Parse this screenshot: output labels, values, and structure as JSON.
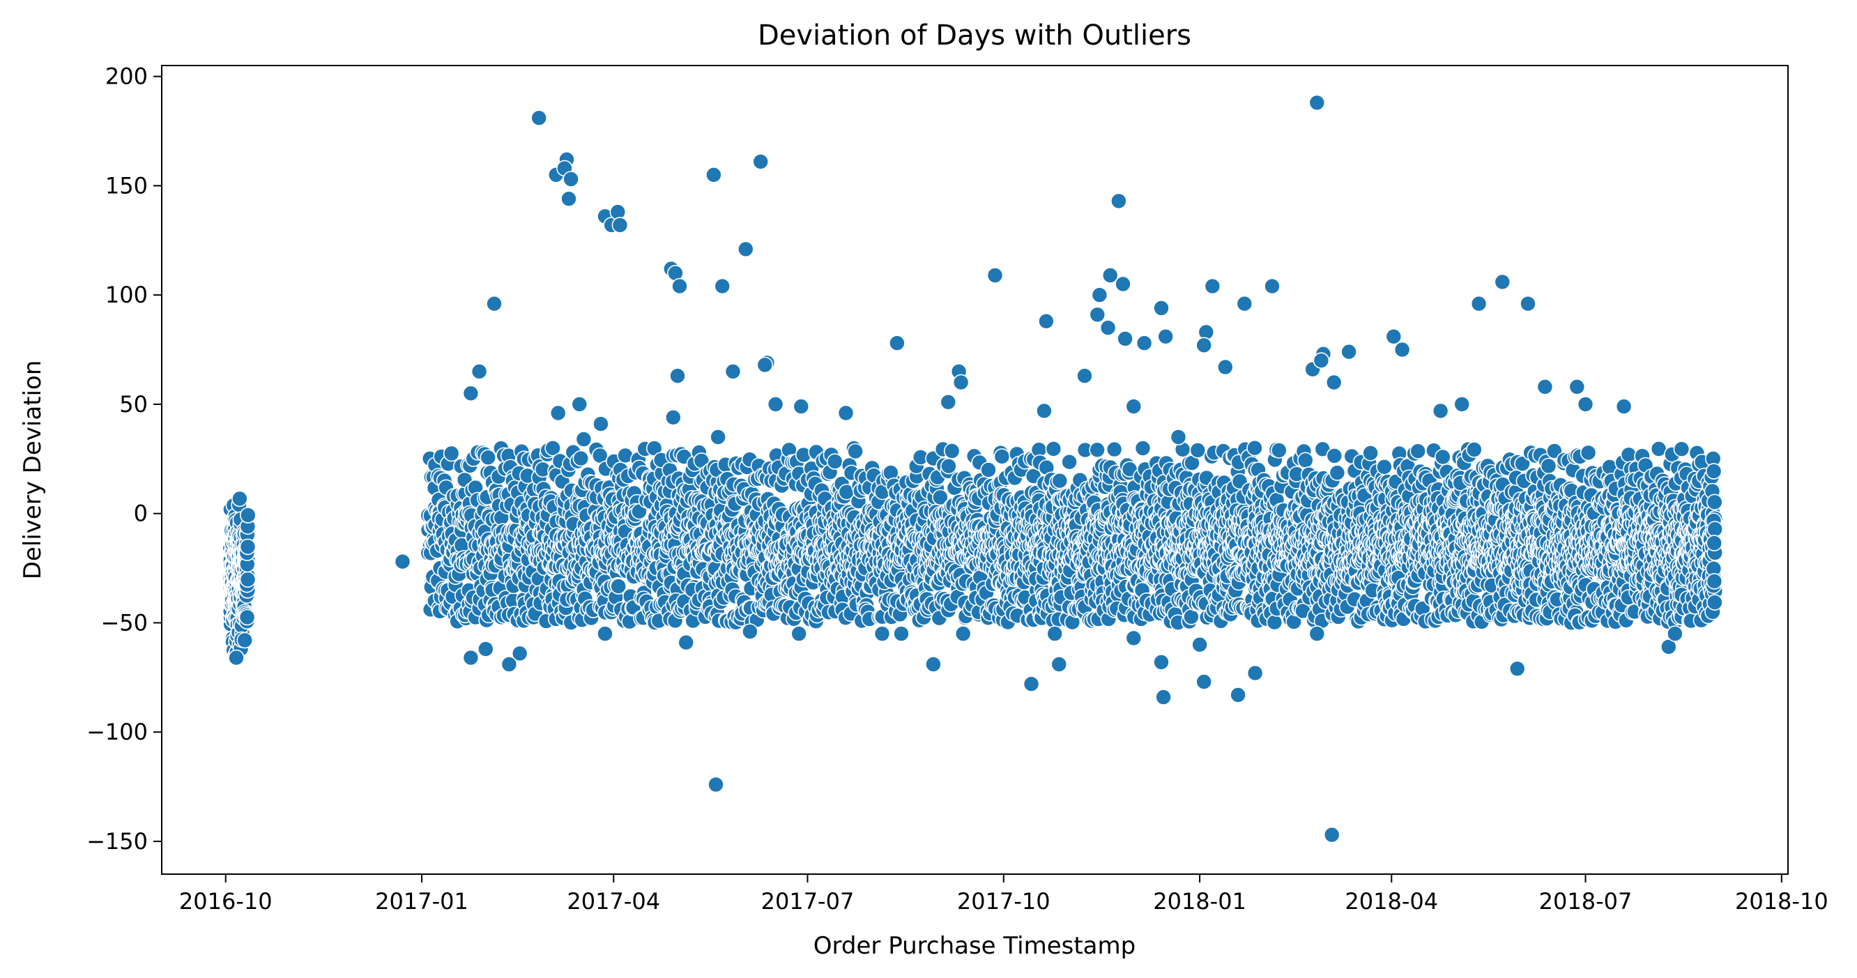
{
  "chart_data": {
    "type": "scatter",
    "title": "Deviation of Days with Outliers",
    "xlabel": "Order Purchase Timestamp",
    "ylabel": "Delivery Deviation",
    "xlim": [
      "2016-09-01",
      "2018-10-04"
    ],
    "ylim": [
      -165,
      205
    ],
    "x_ticks": [
      "2016-10",
      "2017-01",
      "2017-04",
      "2017-07",
      "2017-10",
      "2018-01",
      "2018-04",
      "2018-07",
      "2018-10"
    ],
    "y_ticks": [
      200,
      150,
      100,
      50,
      0,
      -50,
      -100,
      -150
    ],
    "y_tick_labels": [
      "200",
      "150",
      "100",
      "50",
      "0",
      "−50",
      "−100",
      "−150"
    ],
    "grid": false,
    "legend": "none",
    "color": "#1f77b4",
    "outliers": [
      {
        "x": "2017-02-25",
        "y": 181
      },
      {
        "x": "2018-02-25",
        "y": 188
      },
      {
        "x": "2017-03-05",
        "y": 155
      },
      {
        "x": "2017-03-10",
        "y": 162
      },
      {
        "x": "2017-03-09",
        "y": 158
      },
      {
        "x": "2017-03-12",
        "y": 153
      },
      {
        "x": "2017-03-11",
        "y": 144
      },
      {
        "x": "2017-03-28",
        "y": 136
      },
      {
        "x": "2017-03-31",
        "y": 132
      },
      {
        "x": "2017-04-03",
        "y": 138
      },
      {
        "x": "2017-04-04",
        "y": 132
      },
      {
        "x": "2017-05-18",
        "y": 155
      },
      {
        "x": "2017-06-09",
        "y": 161
      },
      {
        "x": "2017-06-02",
        "y": 121
      },
      {
        "x": "2017-04-28",
        "y": 112
      },
      {
        "x": "2017-04-30",
        "y": 110
      },
      {
        "x": "2017-05-02",
        "y": 104
      },
      {
        "x": "2017-05-22",
        "y": 104
      },
      {
        "x": "2017-09-27",
        "y": 109
      },
      {
        "x": "2017-11-24",
        "y": 143
      },
      {
        "x": "2017-11-20",
        "y": 109
      },
      {
        "x": "2017-11-26",
        "y": 105
      },
      {
        "x": "2017-11-15",
        "y": 100
      },
      {
        "x": "2017-11-14",
        "y": 91
      },
      {
        "x": "2017-11-19",
        "y": 85
      },
      {
        "x": "2017-11-27",
        "y": 80
      },
      {
        "x": "2017-12-06",
        "y": 78
      },
      {
        "x": "2017-12-14",
        "y": 94
      },
      {
        "x": "2017-12-16",
        "y": 81
      },
      {
        "x": "2017-10-21",
        "y": 88
      },
      {
        "x": "2018-01-07",
        "y": 104
      },
      {
        "x": "2018-01-04",
        "y": 83
      },
      {
        "x": "2018-01-03",
        "y": 77
      },
      {
        "x": "2018-01-22",
        "y": 96
      },
      {
        "x": "2018-02-04",
        "y": 104
      },
      {
        "x": "2018-01-13",
        "y": 67
      },
      {
        "x": "2018-03-12",
        "y": 74
      },
      {
        "x": "2018-04-02",
        "y": 81
      },
      {
        "x": "2018-04-06",
        "y": 75
      },
      {
        "x": "2018-05-12",
        "y": 96
      },
      {
        "x": "2018-05-23",
        "y": 106
      },
      {
        "x": "2018-06-04",
        "y": 96
      },
      {
        "x": "2017-08-12",
        "y": 78
      },
      {
        "x": "2017-06-12",
        "y": 69
      },
      {
        "x": "2017-06-11",
        "y": 68
      },
      {
        "x": "2017-05-27",
        "y": 65
      },
      {
        "x": "2017-09-10",
        "y": 65
      },
      {
        "x": "2017-09-11",
        "y": 60
      },
      {
        "x": "2017-02-04",
        "y": 96
      },
      {
        "x": "2017-01-28",
        "y": 65
      },
      {
        "x": "2017-01-24",
        "y": 55
      },
      {
        "x": "2017-05-01",
        "y": 63
      },
      {
        "x": "2017-11-08",
        "y": 63
      },
      {
        "x": "2018-02-28",
        "y": 73
      },
      {
        "x": "2018-02-23",
        "y": 66
      },
      {
        "x": "2018-02-27",
        "y": 70
      },
      {
        "x": "2018-03-05",
        "y": 60
      },
      {
        "x": "2018-06-12",
        "y": 58
      },
      {
        "x": "2018-06-27",
        "y": 58
      },
      {
        "x": "2018-07-01",
        "y": 50
      },
      {
        "x": "2018-07-19",
        "y": 49
      },
      {
        "x": "2018-05-04",
        "y": 50
      },
      {
        "x": "2017-03-16",
        "y": 50
      },
      {
        "x": "2017-03-06",
        "y": 46
      },
      {
        "x": "2017-03-26",
        "y": 41
      },
      {
        "x": "2017-06-16",
        "y": 50
      },
      {
        "x": "2017-06-28",
        "y": 49
      },
      {
        "x": "2017-07-19",
        "y": 46
      },
      {
        "x": "2017-09-05",
        "y": 51
      },
      {
        "x": "2017-10-20",
        "y": 47
      },
      {
        "x": "2017-12-01",
        "y": 49
      },
      {
        "x": "2017-03-18",
        "y": 34
      },
      {
        "x": "2017-05-20",
        "y": 35
      },
      {
        "x": "2017-04-29",
        "y": 44
      },
      {
        "x": "2017-12-22",
        "y": 35
      },
      {
        "x": "2018-04-24",
        "y": 47
      },
      {
        "x": "2017-05-19",
        "y": -124
      },
      {
        "x": "2018-03-04",
        "y": -147
      },
      {
        "x": "2017-10-14",
        "y": -78
      },
      {
        "x": "2017-12-15",
        "y": -84
      },
      {
        "x": "2018-01-19",
        "y": -83
      },
      {
        "x": "2018-01-03",
        "y": -77
      },
      {
        "x": "2018-01-27",
        "y": -73
      },
      {
        "x": "2017-12-14",
        "y": -68
      },
      {
        "x": "2017-08-29",
        "y": -69
      },
      {
        "x": "2017-10-27",
        "y": -69
      },
      {
        "x": "2017-01-24",
        "y": -66
      },
      {
        "x": "2017-02-11",
        "y": -69
      },
      {
        "x": "2017-02-16",
        "y": -64
      },
      {
        "x": "2016-10-06",
        "y": -66
      },
      {
        "x": "2017-01-31",
        "y": -62
      },
      {
        "x": "2018-05-30",
        "y": -71
      },
      {
        "x": "2018-08-09",
        "y": -61
      },
      {
        "x": "2018-01-01",
        "y": -60
      },
      {
        "x": "2017-05-05",
        "y": -59
      },
      {
        "x": "2017-06-04",
        "y": -54
      },
      {
        "x": "2017-06-27",
        "y": -55
      },
      {
        "x": "2017-03-28",
        "y": -55
      },
      {
        "x": "2017-08-05",
        "y": -55
      },
      {
        "x": "2017-08-14",
        "y": -55
      },
      {
        "x": "2017-09-12",
        "y": -55
      },
      {
        "x": "2017-10-25",
        "y": -55
      },
      {
        "x": "2017-12-01",
        "y": -57
      },
      {
        "x": "2018-02-25",
        "y": -55
      },
      {
        "x": "2018-08-12",
        "y": -55
      },
      {
        "x": "2016-10-10",
        "y": -58
      }
    ]
  }
}
